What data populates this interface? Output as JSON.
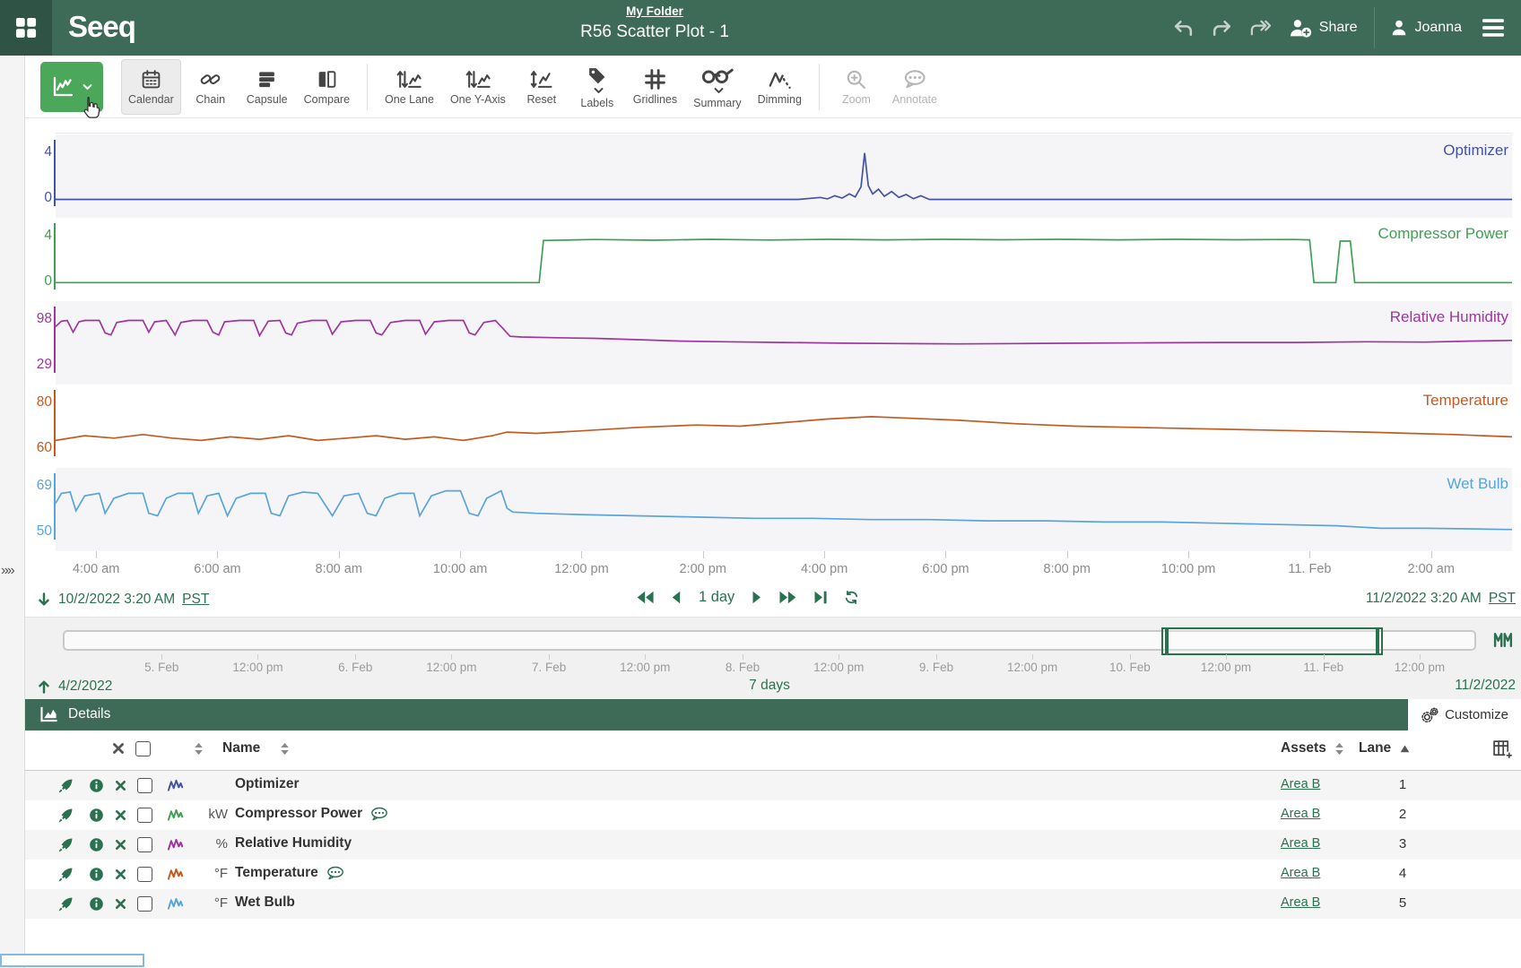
{
  "theme": {
    "header_green": "#3e6a58",
    "header_dark_green": "#2f5446",
    "primary_button_green": "#4ba75a",
    "accent_green": "#2a7150",
    "lane_alt_bg": "#f5f5f7"
  },
  "header": {
    "logo": "Seeq",
    "breadcrumb": "My Folder",
    "title": "R56 Scatter Plot - 1",
    "share_label": "Share",
    "user_name": "Joanna",
    "icons": [
      "app-launcher",
      "undo",
      "redo",
      "forward",
      "share-user",
      "user",
      "menu"
    ]
  },
  "toolbar": {
    "buttons": [
      {
        "label": "",
        "icon": "trend",
        "style": "primary",
        "caret": true,
        "name": "trend-view-button"
      },
      {
        "label": "Calendar",
        "icon": "calendar",
        "style": "active"
      },
      {
        "label": "Chain",
        "icon": "chain"
      },
      {
        "label": "Capsule",
        "icon": "capsule"
      },
      {
        "label": "Compare",
        "icon": "compare"
      },
      {
        "divider": true
      },
      {
        "label": "One Lane",
        "icon": "onelane"
      },
      {
        "label": "One Y-Axis",
        "icon": "onelane"
      },
      {
        "label": "Reset",
        "icon": "reset"
      },
      {
        "label": "Labels",
        "icon": "tag",
        "caret": true
      },
      {
        "label": "Gridlines",
        "icon": "gridlines"
      },
      {
        "label": "Summary",
        "icon": "summary",
        "caret": true
      },
      {
        "label": "Dimming",
        "icon": "dimming"
      },
      {
        "divider": true
      },
      {
        "label": "Zoom",
        "icon": "zoomico",
        "style": "disabled"
      },
      {
        "label": "Annotate",
        "icon": "annotate",
        "style": "disabled"
      }
    ]
  },
  "chart_data": {
    "type": "line",
    "x_range": {
      "start": "10/2/2022 3:20 AM PST",
      "end": "11/2/2022 3:20 AM PST"
    },
    "x_ticks": [
      {
        "label": "4:00 am",
        "pos": 0.0278
      },
      {
        "label": "6:00 am",
        "pos": 0.1111
      },
      {
        "label": "8:00 am",
        "pos": 0.1944
      },
      {
        "label": "10:00 am",
        "pos": 0.2778
      },
      {
        "label": "12:00 pm",
        "pos": 0.3611
      },
      {
        "label": "2:00 pm",
        "pos": 0.4444
      },
      {
        "label": "4:00 pm",
        "pos": 0.5278
      },
      {
        "label": "6:00 pm",
        "pos": 0.6111
      },
      {
        "label": "8:00 pm",
        "pos": 0.6944
      },
      {
        "label": "10:00 pm",
        "pos": 0.7778
      },
      {
        "label": "11. Feb",
        "pos": 0.8611
      },
      {
        "label": "2:00 am",
        "pos": 0.9444
      }
    ],
    "series": [
      {
        "name": "Optimizer",
        "unit": "",
        "lane": 1,
        "color": "#4353a5",
        "y_top": "4",
        "y_bottom": "0",
        "ymin": 0,
        "ymax": 4,
        "points": [
          [
            0,
            0.04
          ],
          [
            0.51,
            0.04
          ],
          [
            0.525,
            0.2
          ],
          [
            0.53,
            0.08
          ],
          [
            0.535,
            0.35
          ],
          [
            0.54,
            0.15
          ],
          [
            0.545,
            0.5
          ],
          [
            0.549,
            0.25
          ],
          [
            0.553,
            1.1
          ],
          [
            0.5555,
            3.95
          ],
          [
            0.558,
            1.2
          ],
          [
            0.561,
            0.5
          ],
          [
            0.565,
            0.9
          ],
          [
            0.569,
            0.3
          ],
          [
            0.574,
            0.7
          ],
          [
            0.579,
            0.2
          ],
          [
            0.584,
            0.45
          ],
          [
            0.589,
            0.1
          ],
          [
            0.594,
            0.35
          ],
          [
            0.6,
            0.04
          ],
          [
            1,
            0.04
          ]
        ]
      },
      {
        "name": "Compressor Power",
        "unit": "kW",
        "lane": 2,
        "color": "#3fa053",
        "y_top": "4",
        "y_bottom": "0",
        "ymin": 0,
        "ymax": 4,
        "points": [
          [
            0,
            0.05
          ],
          [
            0.332,
            0.05
          ],
          [
            0.335,
            3.6
          ],
          [
            0.37,
            3.68
          ],
          [
            0.41,
            3.62
          ],
          [
            0.45,
            3.7
          ],
          [
            0.49,
            3.64
          ],
          [
            0.53,
            3.7
          ],
          [
            0.57,
            3.65
          ],
          [
            0.61,
            3.7
          ],
          [
            0.65,
            3.66
          ],
          [
            0.69,
            3.7
          ],
          [
            0.73,
            3.65
          ],
          [
            0.77,
            3.7
          ],
          [
            0.81,
            3.66
          ],
          [
            0.85,
            3.68
          ],
          [
            0.861,
            3.65
          ],
          [
            0.864,
            0.05
          ],
          [
            0.879,
            0.05
          ],
          [
            0.882,
            3.55
          ],
          [
            0.889,
            3.55
          ],
          [
            0.892,
            0.05
          ],
          [
            1,
            0.05
          ]
        ]
      },
      {
        "name": "Relative Humidity",
        "unit": "%",
        "lane": 3,
        "color": "#9e35a0",
        "y_top": "98",
        "y_bottom": "29",
        "ymin": 29,
        "ymax": 98,
        "points": [
          [
            0,
            87
          ],
          [
            0.004,
            95
          ],
          [
            0.008,
            96
          ],
          [
            0.012,
            79
          ],
          [
            0.016,
            94
          ],
          [
            0.02,
            96
          ],
          [
            0.03,
            96
          ],
          [
            0.034,
            78
          ],
          [
            0.038,
            75
          ],
          [
            0.042,
            93
          ],
          [
            0.05,
            96
          ],
          [
            0.06,
            96
          ],
          [
            0.064,
            79
          ],
          [
            0.068,
            94
          ],
          [
            0.076,
            96
          ],
          [
            0.082,
            75
          ],
          [
            0.086,
            93
          ],
          [
            0.094,
            96
          ],
          [
            0.104,
            96
          ],
          [
            0.108,
            79
          ],
          [
            0.112,
            75
          ],
          [
            0.116,
            94
          ],
          [
            0.126,
            96
          ],
          [
            0.136,
            96
          ],
          [
            0.14,
            74
          ],
          [
            0.146,
            95
          ],
          [
            0.154,
            96
          ],
          [
            0.158,
            78
          ],
          [
            0.162,
            75
          ],
          [
            0.166,
            92
          ],
          [
            0.176,
            96
          ],
          [
            0.186,
            96
          ],
          [
            0.19,
            76
          ],
          [
            0.196,
            94
          ],
          [
            0.206,
            96
          ],
          [
            0.216,
            96
          ],
          [
            0.22,
            78
          ],
          [
            0.224,
            75
          ],
          [
            0.23,
            93
          ],
          [
            0.24,
            96
          ],
          [
            0.25,
            96
          ],
          [
            0.254,
            76
          ],
          [
            0.26,
            94
          ],
          [
            0.27,
            96
          ],
          [
            0.28,
            96
          ],
          [
            0.284,
            78
          ],
          [
            0.288,
            75
          ],
          [
            0.294,
            93
          ],
          [
            0.302,
            96
          ],
          [
            0.306,
            87
          ],
          [
            0.312,
            73
          ],
          [
            0.32,
            72
          ],
          [
            0.34,
            71
          ],
          [
            0.37,
            70
          ],
          [
            0.4,
            68
          ],
          [
            0.43,
            66
          ],
          [
            0.46,
            65
          ],
          [
            0.5,
            64
          ],
          [
            0.54,
            63
          ],
          [
            0.58,
            62.5
          ],
          [
            0.62,
            62
          ],
          [
            0.66,
            62.5
          ],
          [
            0.7,
            63
          ],
          [
            0.75,
            63.5
          ],
          [
            0.8,
            64
          ],
          [
            0.85,
            64
          ],
          [
            0.9,
            65
          ],
          [
            0.94,
            64.5
          ],
          [
            0.97,
            66
          ],
          [
            1,
            67
          ]
        ]
      },
      {
        "name": "Temperature",
        "unit": "°F",
        "lane": 4,
        "color": "#c25b21",
        "y_top": "80",
        "y_bottom": "60",
        "ymin": 60,
        "ymax": 80,
        "points": [
          [
            0,
            64
          ],
          [
            0.02,
            66
          ],
          [
            0.04,
            65
          ],
          [
            0.06,
            66.5
          ],
          [
            0.08,
            65
          ],
          [
            0.1,
            64
          ],
          [
            0.12,
            65.5
          ],
          [
            0.14,
            64.5
          ],
          [
            0.16,
            66
          ],
          [
            0.18,
            64
          ],
          [
            0.2,
            65
          ],
          [
            0.22,
            66
          ],
          [
            0.24,
            64.5
          ],
          [
            0.26,
            65.5
          ],
          [
            0.28,
            64
          ],
          [
            0.3,
            66
          ],
          [
            0.31,
            67.5
          ],
          [
            0.33,
            67
          ],
          [
            0.36,
            68
          ],
          [
            0.4,
            69.5
          ],
          [
            0.44,
            70.5
          ],
          [
            0.47,
            70
          ],
          [
            0.5,
            71.5
          ],
          [
            0.53,
            73
          ],
          [
            0.56,
            74
          ],
          [
            0.58,
            73.5
          ],
          [
            0.62,
            72.5
          ],
          [
            0.66,
            71
          ],
          [
            0.7,
            70
          ],
          [
            0.74,
            69.5
          ],
          [
            0.78,
            69
          ],
          [
            0.82,
            68.5
          ],
          [
            0.86,
            68
          ],
          [
            0.9,
            67.5
          ],
          [
            0.93,
            67
          ],
          [
            0.96,
            66.5
          ],
          [
            1,
            65.5
          ]
        ]
      },
      {
        "name": "Wet Bulb",
        "unit": "°F",
        "lane": 5,
        "color": "#59a4d9",
        "y_top": "69",
        "y_bottom": "50",
        "ymin": 50,
        "ymax": 69,
        "points": [
          [
            0,
            62
          ],
          [
            0.004,
            66
          ],
          [
            0.01,
            66.5
          ],
          [
            0.014,
            59
          ],
          [
            0.02,
            65
          ],
          [
            0.03,
            66
          ],
          [
            0.034,
            58
          ],
          [
            0.04,
            64
          ],
          [
            0.05,
            66
          ],
          [
            0.06,
            66
          ],
          [
            0.064,
            58
          ],
          [
            0.07,
            57
          ],
          [
            0.076,
            64
          ],
          [
            0.084,
            66
          ],
          [
            0.094,
            66
          ],
          [
            0.098,
            58
          ],
          [
            0.104,
            65
          ],
          [
            0.112,
            66
          ],
          [
            0.118,
            57
          ],
          [
            0.124,
            64
          ],
          [
            0.134,
            66
          ],
          [
            0.144,
            66
          ],
          [
            0.148,
            58
          ],
          [
            0.154,
            57
          ],
          [
            0.16,
            65
          ],
          [
            0.17,
            66.5
          ],
          [
            0.18,
            66
          ],
          [
            0.19,
            57
          ],
          [
            0.198,
            65
          ],
          [
            0.208,
            66
          ],
          [
            0.214,
            58
          ],
          [
            0.22,
            57
          ],
          [
            0.226,
            64
          ],
          [
            0.236,
            66
          ],
          [
            0.246,
            66
          ],
          [
            0.25,
            57
          ],
          [
            0.258,
            65
          ],
          [
            0.268,
            67
          ],
          [
            0.278,
            67
          ],
          [
            0.284,
            58
          ],
          [
            0.29,
            57
          ],
          [
            0.296,
            64
          ],
          [
            0.306,
            67
          ],
          [
            0.31,
            60
          ],
          [
            0.314,
            58.5
          ],
          [
            0.33,
            58
          ],
          [
            0.36,
            57.5
          ],
          [
            0.4,
            57
          ],
          [
            0.44,
            56.5
          ],
          [
            0.48,
            56
          ],
          [
            0.52,
            56
          ],
          [
            0.56,
            55.5
          ],
          [
            0.6,
            55.5
          ],
          [
            0.64,
            55
          ],
          [
            0.68,
            55
          ],
          [
            0.72,
            54.5
          ],
          [
            0.76,
            54.5
          ],
          [
            0.8,
            54
          ],
          [
            0.84,
            53.5
          ],
          [
            0.88,
            53
          ],
          [
            0.91,
            52
          ],
          [
            0.94,
            52
          ],
          [
            0.97,
            51.8
          ],
          [
            1,
            51.5
          ]
        ]
      }
    ]
  },
  "range": {
    "start": "10/2/2022 3:20 AM",
    "start_tz": "PST",
    "end": "11/2/2022 3:20 AM",
    "end_tz": "PST",
    "duration": "1 day",
    "nav_icons": [
      "jump-to-start",
      "step-back",
      "step-forward",
      "fast-forward",
      "jump-to-end",
      "refresh"
    ]
  },
  "timeline": {
    "ticks": [
      {
        "label": "5. Feb",
        "pos": 0.07
      },
      {
        "label": "12:00 pm",
        "pos": 0.138
      },
      {
        "label": "6. Feb",
        "pos": 0.207
      },
      {
        "label": "12:00 pm",
        "pos": 0.275
      },
      {
        "label": "7. Feb",
        "pos": 0.344
      },
      {
        "label": "12:00 pm",
        "pos": 0.412
      },
      {
        "label": "8. Feb",
        "pos": 0.481
      },
      {
        "label": "12:00 pm",
        "pos": 0.549
      },
      {
        "label": "9. Feb",
        "pos": 0.618
      },
      {
        "label": "12:00 pm",
        "pos": 0.686
      },
      {
        "label": "10. Feb",
        "pos": 0.755
      },
      {
        "label": "12:00 pm",
        "pos": 0.823
      },
      {
        "label": "11. Feb",
        "pos": 0.892
      },
      {
        "label": "12:00 pm",
        "pos": 0.96
      }
    ],
    "selection": {
      "start": 0.778,
      "width": 0.157
    },
    "start_date": "4/2/2022",
    "duration_label": "7 days",
    "end_date": "11/2/2022"
  },
  "details": {
    "title": "Details",
    "customize_label": "Customize",
    "columns": {
      "name": "Name",
      "assets": "Assets",
      "lane": "Lane"
    },
    "rows": [
      {
        "unit": "",
        "name": "Optimizer",
        "color": "#4353a5",
        "asset": "Area B",
        "lane": "1",
        "annotated": false
      },
      {
        "unit": "kW",
        "name": "Compressor Power",
        "color": "#3fa053",
        "asset": "Area B",
        "lane": "2",
        "annotated": true
      },
      {
        "unit": "%",
        "name": "Relative Humidity",
        "color": "#9e35a0",
        "asset": "Area B",
        "lane": "3",
        "annotated": false
      },
      {
        "unit": "°F",
        "name": "Temperature",
        "color": "#c25b21",
        "asset": "Area B",
        "lane": "4",
        "annotated": true
      },
      {
        "unit": "°F",
        "name": "Wet Bulb",
        "color": "#59a4d9",
        "asset": "Area B",
        "lane": "5",
        "annotated": false
      }
    ]
  }
}
